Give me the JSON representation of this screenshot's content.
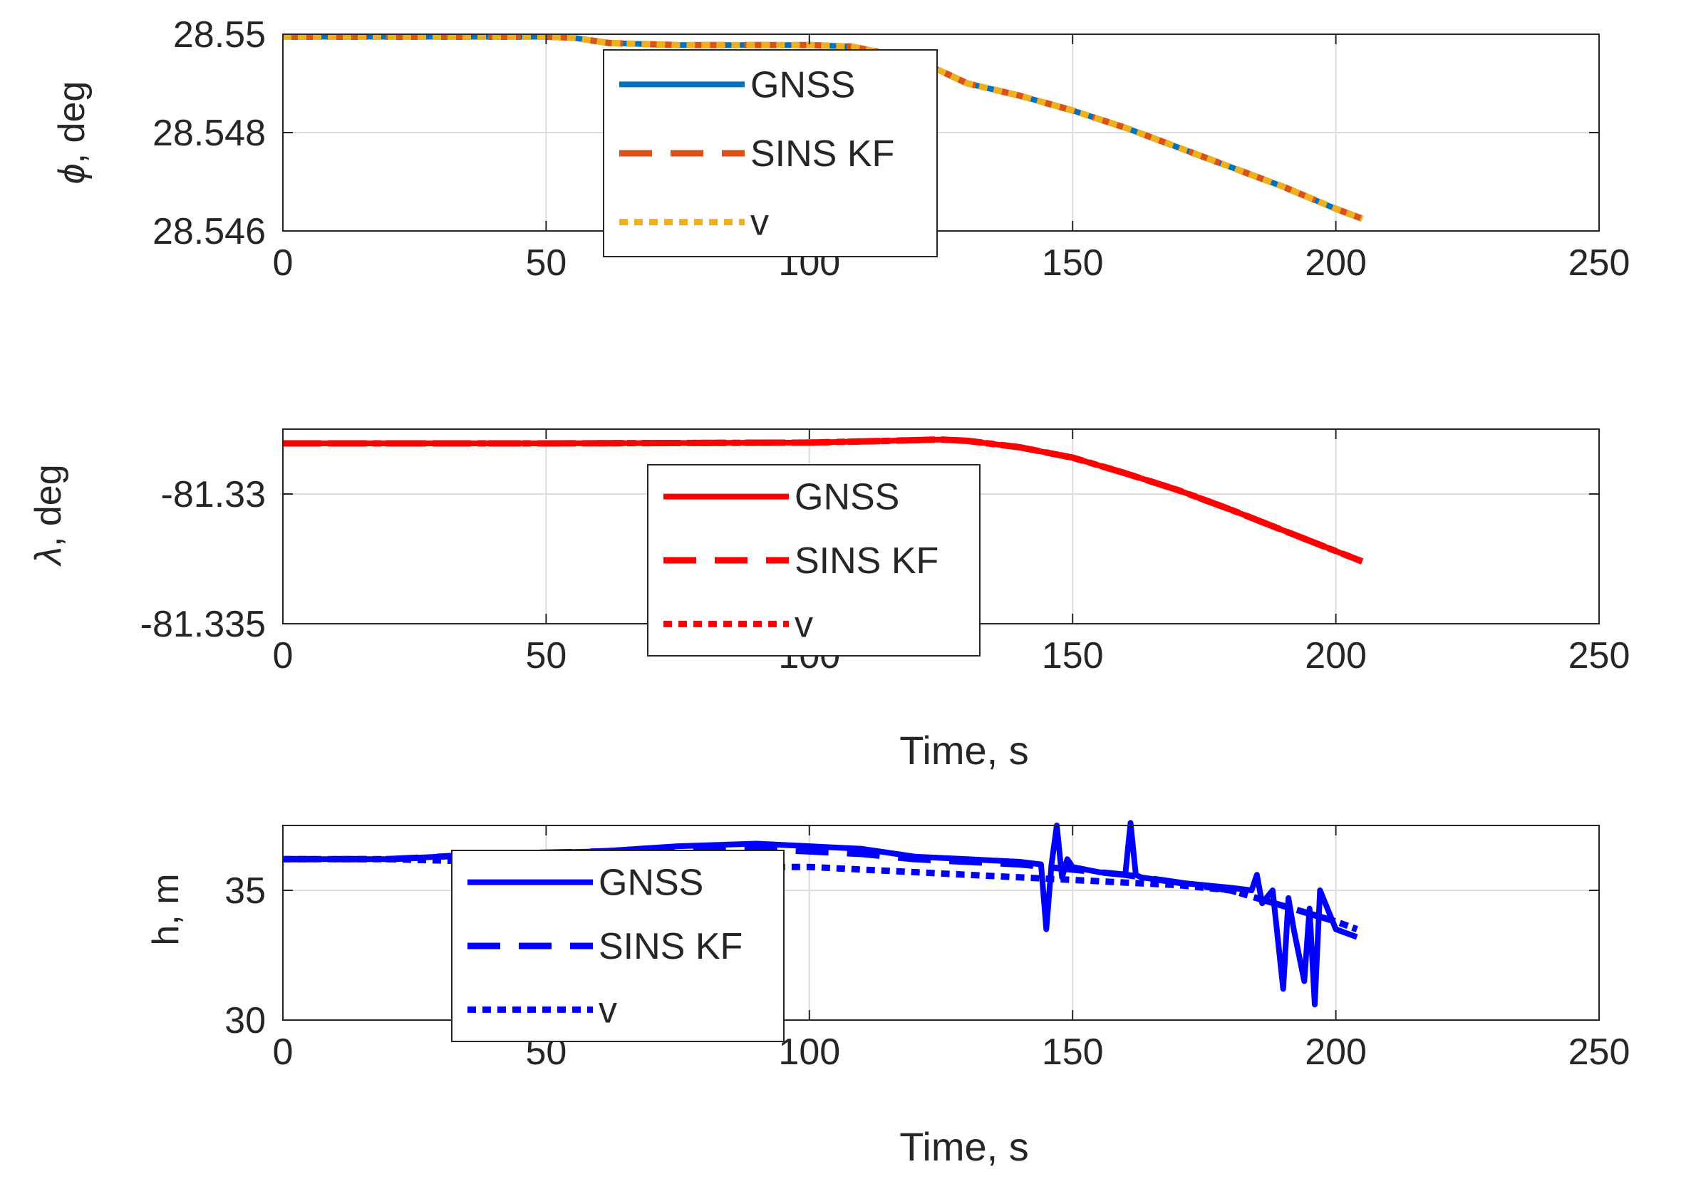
{
  "chart_data": [
    {
      "type": "line",
      "ylabel_symbol": "ϕ",
      "ylabel_unit": ", deg",
      "xlabel": "",
      "xlim": [
        0,
        250
      ],
      "ylim": [
        28.546,
        28.55
      ],
      "xticks": [
        0,
        50,
        100,
        150,
        200,
        250
      ],
      "yticks": [
        28.546,
        28.548,
        28.55
      ],
      "ytick_labels": [
        "28.546",
        "28.548",
        "28.55"
      ],
      "grid": true,
      "legend_position": "center-left",
      "series": [
        {
          "name": "GNSS",
          "style": "solid",
          "color": "#0072BD",
          "x": [
            0,
            25,
            50,
            55,
            62,
            75,
            100,
            108,
            115,
            122,
            130,
            140,
            150,
            160,
            170,
            180,
            190,
            200,
            205
          ],
          "y": [
            28.54995,
            28.54995,
            28.54995,
            28.54993,
            28.54982,
            28.54978,
            28.54978,
            28.54975,
            28.5496,
            28.5494,
            28.549,
            28.54875,
            28.54845,
            28.5481,
            28.5477,
            28.5473,
            28.5469,
            28.54645,
            28.54625
          ]
        },
        {
          "name": "SINS KF",
          "style": "dashed",
          "color": "#D95319",
          "x": [
            0,
            25,
            50,
            55,
            62,
            75,
            100,
            108,
            115,
            122,
            130,
            140,
            150,
            160,
            170,
            180,
            190,
            200,
            205
          ],
          "y": [
            28.54995,
            28.54995,
            28.54995,
            28.54993,
            28.54982,
            28.54978,
            28.54978,
            28.54975,
            28.5496,
            28.5494,
            28.549,
            28.54875,
            28.54845,
            28.5481,
            28.5477,
            28.5473,
            28.5469,
            28.54645,
            28.54625
          ]
        },
        {
          "name": "v",
          "style": "dotted",
          "color": "#EDB120",
          "x": [
            0,
            25,
            50,
            55,
            62,
            75,
            100,
            108,
            115,
            122,
            130,
            140,
            150,
            160,
            170,
            180,
            190,
            200,
            205
          ],
          "y": [
            28.54995,
            28.54995,
            28.54995,
            28.54993,
            28.54982,
            28.54978,
            28.54978,
            28.54975,
            28.5496,
            28.5494,
            28.549,
            28.54875,
            28.54845,
            28.5481,
            28.5477,
            28.5473,
            28.5469,
            28.54645,
            28.54625
          ]
        }
      ]
    },
    {
      "type": "line",
      "ylabel_symbol": "λ",
      "ylabel_unit": ", deg",
      "xlabel": "Time, s",
      "xlim": [
        0,
        250
      ],
      "ylim": [
        -81.335,
        -81.3275
      ],
      "xticks": [
        0,
        50,
        100,
        150,
        200,
        250
      ],
      "yticks": [
        -81.335,
        -81.33
      ],
      "ytick_labels": [
        "-81.335",
        "-81.33"
      ],
      "grid": true,
      "legend_position": "center",
      "series": [
        {
          "name": "GNSS",
          "style": "solid",
          "color": "#FF0000",
          "x": [
            0,
            50,
            100,
            115,
            125,
            130,
            140,
            150,
            160,
            170,
            180,
            190,
            200,
            205
          ],
          "y": [
            -81.32805,
            -81.32805,
            -81.32802,
            -81.32795,
            -81.3279,
            -81.32795,
            -81.3282,
            -81.3286,
            -81.3292,
            -81.32985,
            -81.3306,
            -81.3314,
            -81.3322,
            -81.3326
          ]
        },
        {
          "name": "SINS KF",
          "style": "dashed",
          "color": "#FF0000",
          "x": [
            0,
            50,
            100,
            115,
            125,
            130,
            140,
            150,
            160,
            170,
            180,
            190,
            200,
            205
          ],
          "y": [
            -81.32805,
            -81.32805,
            -81.32802,
            -81.32795,
            -81.3279,
            -81.32795,
            -81.3282,
            -81.3286,
            -81.3292,
            -81.32985,
            -81.3306,
            -81.3314,
            -81.3322,
            -81.3326
          ]
        },
        {
          "name": "v",
          "style": "dotted",
          "color": "#FF0000",
          "x": [
            0,
            50,
            100,
            115,
            125,
            130,
            140,
            150,
            160,
            170,
            180,
            190,
            200,
            205
          ],
          "y": [
            -81.32805,
            -81.32805,
            -81.32802,
            -81.32795,
            -81.3279,
            -81.32795,
            -81.3282,
            -81.3286,
            -81.3292,
            -81.32985,
            -81.3306,
            -81.3314,
            -81.3322,
            -81.3326
          ]
        }
      ]
    },
    {
      "type": "line",
      "ylabel_symbol": "h",
      "ylabel_unit": ", m",
      "xlabel": "Time, s",
      "xlim": [
        0,
        250
      ],
      "ylim": [
        30,
        37.5
      ],
      "xticks": [
        0,
        50,
        100,
        150,
        200,
        250
      ],
      "yticks": [
        30,
        35
      ],
      "ytick_labels": [
        "30",
        "35"
      ],
      "grid": true,
      "legend_position": "center-left",
      "series": [
        {
          "name": "GNSS",
          "style": "solid",
          "color": "#0000FF",
          "x": [
            0,
            20,
            40,
            60,
            75,
            90,
            100,
            110,
            120,
            130,
            140,
            144,
            145,
            146,
            147,
            148,
            149,
            150,
            155,
            160,
            161,
            162,
            163,
            170,
            180,
            184,
            185,
            186,
            188,
            190,
            191,
            192,
            194,
            195,
            196,
            197,
            198,
            200,
            204
          ],
          "y": [
            36.2,
            36.2,
            36.4,
            36.5,
            36.7,
            36.8,
            36.7,
            36.6,
            36.3,
            36.2,
            36.1,
            36.0,
            33.5,
            36.0,
            37.5,
            35.5,
            36.2,
            35.9,
            35.7,
            35.6,
            37.6,
            35.6,
            35.5,
            35.3,
            35.1,
            35.0,
            35.6,
            34.5,
            35.0,
            31.2,
            34.7,
            33.5,
            31.5,
            34.3,
            30.6,
            35.0,
            34.5,
            33.5,
            33.2
          ]
        },
        {
          "name": "SINS KF",
          "style": "dashed",
          "color": "#0000FF",
          "x": [
            0,
            20,
            40,
            60,
            75,
            90,
            100,
            110,
            120,
            130,
            140,
            150,
            160,
            170,
            180,
            190,
            200,
            204
          ],
          "y": [
            36.2,
            36.2,
            36.4,
            36.5,
            36.6,
            36.6,
            36.5,
            36.4,
            36.2,
            36.1,
            36.0,
            35.8,
            35.6,
            35.3,
            35.0,
            34.4,
            33.8,
            33.5
          ]
        },
        {
          "name": "v",
          "style": "dotted",
          "color": "#0000FF",
          "x": [
            0,
            20,
            40,
            60,
            80,
            100,
            110,
            120,
            130,
            140,
            150,
            160,
            170,
            180,
            190,
            200,
            204
          ],
          "y": [
            36.2,
            36.2,
            36.1,
            36.0,
            35.9,
            35.9,
            35.8,
            35.7,
            35.6,
            35.5,
            35.4,
            35.3,
            35.2,
            35.0,
            34.4,
            33.8,
            33.5
          ]
        }
      ]
    }
  ]
}
